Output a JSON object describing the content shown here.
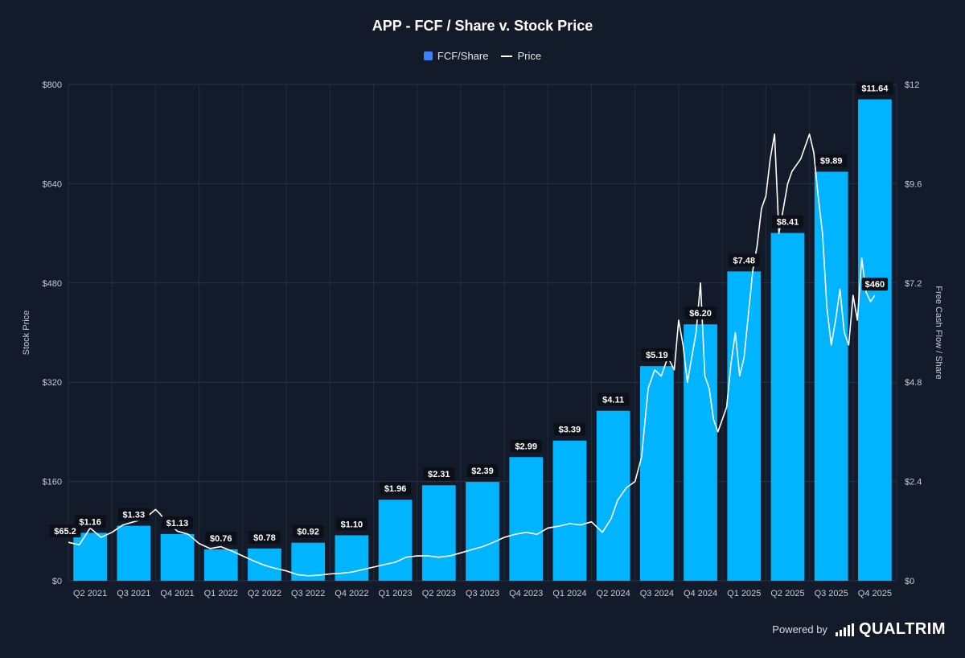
{
  "chart_data": {
    "type": "bar",
    "title": "APP - FCF / Share v. Stock Price",
    "categories": [
      "Q2 2021",
      "Q3 2021",
      "Q4 2021",
      "Q1 2022",
      "Q2 2022",
      "Q3 2022",
      "Q4 2022",
      "Q1 2023",
      "Q2 2023",
      "Q3 2023",
      "Q4 2023",
      "Q1 2024",
      "Q2 2024",
      "Q3 2024",
      "Q4 2024",
      "Q1 2025",
      "Q2 2025",
      "Q3 2025",
      "Q4 2025"
    ],
    "series": [
      {
        "name": "FCF/Share",
        "axis": "right",
        "type": "bar",
        "values": [
          1.16,
          1.33,
          1.13,
          0.76,
          0.78,
          0.92,
          1.1,
          1.96,
          2.31,
          2.39,
          2.99,
          3.39,
          4.11,
          5.19,
          6.2,
          7.48,
          8.41,
          9.89,
          11.64
        ],
        "labels": [
          "$1.16",
          "$1.33",
          "$1.13",
          "$0.76",
          "$0.78",
          "$0.92",
          "$1.10",
          "$1.96",
          "$2.31",
          "$2.39",
          "$2.99",
          "$3.39",
          "$4.11",
          "$5.19",
          "$6.20",
          "$7.48",
          "$8.41",
          "$9.89",
          "$11.64"
        ],
        "color": "#00b4ff"
      },
      {
        "name": "Price",
        "axis": "left",
        "type": "line",
        "x": [
          0.0,
          0.25,
          0.5,
          0.75,
          1.0,
          1.25,
          1.5,
          1.75,
          2.0,
          2.1,
          2.25,
          2.5,
          2.75,
          3.0,
          3.25,
          3.5,
          3.75,
          4.0,
          4.25,
          4.5,
          4.75,
          5.0,
          5.25,
          5.5,
          5.75,
          6.0,
          6.25,
          6.5,
          6.75,
          7.0,
          7.25,
          7.5,
          7.75,
          8.0,
          8.25,
          8.5,
          8.75,
          9.0,
          9.25,
          9.5,
          9.75,
          10.0,
          10.25,
          10.5,
          10.75,
          11.0,
          11.25,
          11.5,
          11.75,
          12.0,
          12.25,
          12.45,
          12.6,
          12.8,
          13.0,
          13.15,
          13.3,
          13.45,
          13.6,
          13.75,
          13.9,
          14.0,
          14.1,
          14.2,
          14.3,
          14.4,
          14.5,
          14.6,
          14.7,
          14.8,
          14.9,
          15.0,
          15.1,
          15.2,
          15.3,
          15.4,
          15.5,
          15.6,
          15.7,
          15.8,
          15.9,
          16.0,
          16.1,
          16.2,
          16.3,
          16.4,
          16.5,
          16.6,
          16.7,
          16.8,
          16.9,
          17.0,
          17.1,
          17.2,
          17.3,
          17.4,
          17.5,
          17.6,
          17.7,
          17.8,
          17.9,
          18.0,
          18.1,
          18.2,
          18.3,
          18.4,
          18.5
        ],
        "values": [
          62,
          58,
          85,
          70,
          78,
          90,
          95,
          100,
          115,
          108,
          95,
          80,
          75,
          60,
          52,
          55,
          48,
          40,
          32,
          25,
          20,
          16,
          10,
          8,
          9,
          11,
          12,
          14,
          18,
          22,
          26,
          30,
          38,
          40,
          40,
          38,
          40,
          45,
          50,
          55,
          62,
          70,
          75,
          78,
          75,
          85,
          88,
          92,
          90,
          95,
          78,
          100,
          130,
          150,
          160,
          200,
          310,
          340,
          330,
          360,
          340,
          420,
          380,
          320,
          360,
          400,
          480,
          330,
          310,
          260,
          240,
          260,
          280,
          350,
          400,
          330,
          360,
          430,
          500,
          540,
          600,
          620,
          680,
          720,
          560,
          600,
          640,
          660,
          670,
          680,
          700,
          720,
          690,
          620,
          560,
          440,
          380,
          420,
          470,
          400,
          380,
          460,
          420,
          520,
          465,
          450,
          460
        ],
        "price_label": "$460",
        "start_label": "$65.2",
        "color": "#ffffff"
      }
    ],
    "yleft": {
      "label": "Stock Price",
      "ticks": [
        "$0",
        "$160",
        "$320",
        "$480",
        "$640",
        "$800"
      ],
      "min": 0,
      "max": 800
    },
    "yright": {
      "label": "Free Cash Flow / Share",
      "ticks": [
        "$0",
        "$2.4",
        "$4.8",
        "$7.2",
        "$9.6",
        "$12"
      ],
      "min": 0,
      "max": 12
    },
    "grid": true,
    "legend": "top-center"
  },
  "legend": {
    "bar_label": "FCF/Share",
    "line_label": "Price"
  },
  "footer": {
    "powered_by": "Powered by",
    "brand": "QUALTRIM"
  }
}
